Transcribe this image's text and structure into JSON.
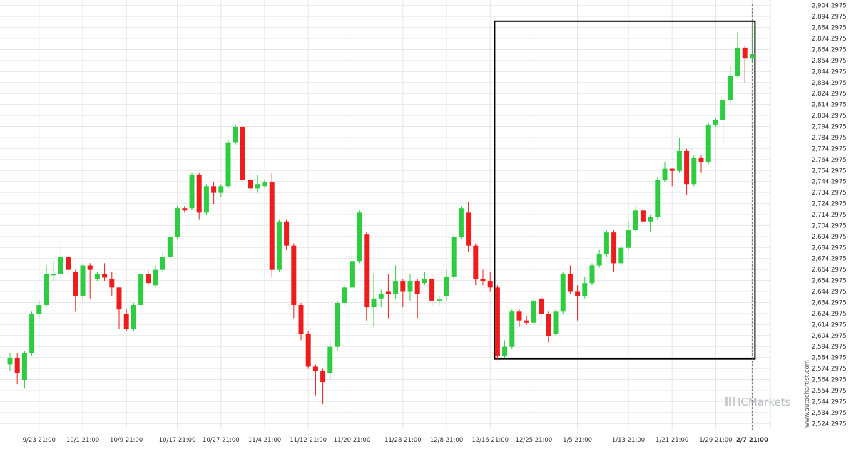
{
  "chart_data": {
    "type": "candlestick",
    "title": "",
    "xlabel": "",
    "ylabel": "",
    "ylim": [
      2519.2975,
      2909.2975
    ],
    "grid": true,
    "colors": {
      "up": "#2ecc40",
      "down": "#ee1c1c",
      "grid": "#e6e6e6",
      "highlight_box": "#000000"
    },
    "x_ticks": [
      "9/23 21:00",
      "10/1 21:00",
      "10/9 21:00",
      "10/17 21:00",
      "10/27 21:00",
      "11/4 21:00",
      "11/12 21:00",
      "11/20 21:00",
      "11/28 21:00",
      "12/8 21:00",
      "12/16 21:00",
      "12/25 21:00",
      "1/5 21:00",
      "1/13 21:00",
      "1/21 21:00",
      "1/29 21:00",
      "2/7 21:00"
    ],
    "y_ticks": [
      "2,524.2975",
      "2,534.2975",
      "2,544.2975",
      "2,554.2975",
      "2,564.2975",
      "2,574.2975",
      "2,584.2975",
      "2,594.2975",
      "2,604.2975",
      "2,614.2975",
      "2,624.2975",
      "2,634.2975",
      "2,644.2975",
      "2,654.2975",
      "2,664.2975",
      "2,674.2975",
      "2,684.2975",
      "2,694.2975",
      "2,704.2975",
      "2,714.2975",
      "2,724.2975",
      "2,734.2975",
      "2,744.2975",
      "2,754.2975",
      "2,764.2975",
      "2,774.2975",
      "2,784.2975",
      "2,794.2975",
      "2,804.2975",
      "2,814.2975",
      "2,824.2975",
      "2,834.2975",
      "2,844.2975",
      "2,854.2975",
      "2,864.2975",
      "2,874.2975",
      "2,884.2975",
      "2,894.2975",
      "2,904.2975"
    ],
    "y_tick_values": [
      2524.2975,
      2534.2975,
      2544.2975,
      2554.2975,
      2564.2975,
      2574.2975,
      2584.2975,
      2594.2975,
      2604.2975,
      2614.2975,
      2624.2975,
      2634.2975,
      2644.2975,
      2654.2975,
      2664.2975,
      2674.2975,
      2684.2975,
      2694.2975,
      2704.2975,
      2714.2975,
      2724.2975,
      2734.2975,
      2744.2975,
      2754.2975,
      2764.2975,
      2774.2975,
      2784.2975,
      2794.2975,
      2804.2975,
      2814.2975,
      2824.2975,
      2834.2975,
      2844.2975,
      2854.2975,
      2864.2975,
      2874.2975,
      2884.2975,
      2894.2975,
      2904.2975
    ],
    "highlight_box": {
      "x_start_index": 67,
      "x_end_index": 102,
      "y_low": 2583.0,
      "y_high": 2890.0
    },
    "candles": [
      [
        2578,
        2584,
        2572,
        2588
      ],
      [
        2584,
        2570,
        2560,
        2588
      ],
      [
        2564,
        2588,
        2556,
        2590
      ],
      [
        2588,
        2624,
        2586,
        2626
      ],
      [
        2624,
        2632,
        2620,
        2636
      ],
      [
        2632,
        2660,
        2630,
        2668
      ],
      [
        2660,
        2660,
        2654,
        2672
      ],
      [
        2660,
        2676,
        2656,
        2690
      ],
      [
        2676,
        2664,
        2660,
        2676
      ],
      [
        2662,
        2640,
        2626,
        2664
      ],
      [
        2640,
        2668,
        2638,
        2670
      ],
      [
        2668,
        2664,
        2638,
        2670
      ],
      [
        2656,
        2660,
        2654,
        2662
      ],
      [
        2660,
        2657,
        2654,
        2670
      ],
      [
        2656,
        2648,
        2640,
        2662
      ],
      [
        2648,
        2628,
        2610,
        2648
      ],
      [
        2624,
        2610,
        2608,
        2628
      ],
      [
        2610,
        2632,
        2608,
        2634
      ],
      [
        2632,
        2660,
        2630,
        2662
      ],
      [
        2660,
        2652,
        2650,
        2664
      ],
      [
        2650,
        2664,
        2648,
        2668
      ],
      [
        2664,
        2676,
        2662,
        2680
      ],
      [
        2676,
        2694,
        2674,
        2698
      ],
      [
        2694,
        2720,
        2692,
        2722
      ],
      [
        2720,
        2718,
        2716,
        2722
      ],
      [
        2720,
        2750,
        2718,
        2752
      ],
      [
        2750,
        2716,
        2710,
        2752
      ],
      [
        2716,
        2740,
        2714,
        2742
      ],
      [
        2740,
        2734,
        2724,
        2744
      ],
      [
        2734,
        2740,
        2730,
        2742
      ],
      [
        2740,
        2780,
        2738,
        2782
      ],
      [
        2780,
        2794,
        2778,
        2796
      ],
      [
        2794,
        2746,
        2740,
        2796
      ],
      [
        2746,
        2738,
        2734,
        2752
      ],
      [
        2738,
        2742,
        2734,
        2750
      ],
      [
        2740,
        2744,
        2738,
        2746
      ],
      [
        2744,
        2664,
        2658,
        2752
      ],
      [
        2664,
        2708,
        2662,
        2710
      ],
      [
        2708,
        2686,
        2682,
        2710
      ],
      [
        2686,
        2632,
        2620,
        2688
      ],
      [
        2632,
        2606,
        2600,
        2634
      ],
      [
        2606,
        2576,
        2574,
        2608
      ],
      [
        2576,
        2572,
        2550,
        2578
      ],
      [
        2572,
        2562,
        2542,
        2574
      ],
      [
        2570,
        2594,
        2564,
        2598
      ],
      [
        2594,
        2634,
        2590,
        2636
      ],
      [
        2634,
        2648,
        2632,
        2650
      ],
      [
        2648,
        2672,
        2646,
        2678
      ],
      [
        2672,
        2716,
        2670,
        2718
      ],
      [
        2696,
        2630,
        2618,
        2698
      ],
      [
        2630,
        2638,
        2612,
        2660
      ],
      [
        2638,
        2642,
        2630,
        2646
      ],
      [
        2644,
        2642,
        2620,
        2660
      ],
      [
        2642,
        2654,
        2638,
        2668
      ],
      [
        2654,
        2644,
        2630,
        2656
      ],
      [
        2644,
        2654,
        2636,
        2660
      ],
      [
        2654,
        2642,
        2620,
        2656
      ],
      [
        2652,
        2656,
        2650,
        2662
      ],
      [
        2656,
        2636,
        2630,
        2660
      ],
      [
        2636,
        2637,
        2632,
        2640
      ],
      [
        2640,
        2658,
        2636,
        2664
      ],
      [
        2658,
        2694,
        2656,
        2696
      ],
      [
        2694,
        2720,
        2692,
        2722
      ],
      [
        2716,
        2686,
        2680,
        2726
      ],
      [
        2686,
        2656,
        2650,
        2688
      ],
      [
        2656,
        2654,
        2650,
        2664
      ],
      [
        2654,
        2648,
        2644,
        2662
      ],
      [
        2648,
        2586,
        2582,
        2650
      ],
      [
        2586,
        2594,
        2584,
        2600
      ],
      [
        2594,
        2626,
        2592,
        2628
      ],
      [
        2626,
        2618,
        2612,
        2628
      ],
      [
        2618,
        2616,
        2614,
        2622
      ],
      [
        2616,
        2636,
        2614,
        2638
      ],
      [
        2638,
        2624,
        2614,
        2640
      ],
      [
        2624,
        2604,
        2598,
        2626
      ],
      [
        2606,
        2626,
        2604,
        2628
      ],
      [
        2626,
        2660,
        2624,
        2662
      ],
      [
        2660,
        2644,
        2642,
        2668
      ],
      [
        2644,
        2640,
        2618,
        2650
      ],
      [
        2640,
        2652,
        2638,
        2658
      ],
      [
        2652,
        2668,
        2650,
        2670
      ],
      [
        2668,
        2678,
        2666,
        2682
      ],
      [
        2678,
        2698,
        2676,
        2700
      ],
      [
        2698,
        2670,
        2662,
        2700
      ],
      [
        2670,
        2684,
        2668,
        2686
      ],
      [
        2684,
        2700,
        2682,
        2708
      ],
      [
        2700,
        2718,
        2698,
        2722
      ],
      [
        2718,
        2708,
        2704,
        2720
      ],
      [
        2708,
        2712,
        2698,
        2714
      ],
      [
        2712,
        2746,
        2710,
        2748
      ],
      [
        2746,
        2756,
        2744,
        2762
      ],
      [
        2756,
        2754,
        2740,
        2756
      ],
      [
        2754,
        2772,
        2752,
        2784
      ],
      [
        2772,
        2742,
        2732,
        2774
      ],
      [
        2742,
        2766,
        2740,
        2768
      ],
      [
        2766,
        2762,
        2752,
        2768
      ],
      [
        2762,
        2796,
        2760,
        2798
      ],
      [
        2796,
        2800,
        2794,
        2802
      ],
      [
        2800,
        2818,
        2776,
        2820
      ],
      [
        2818,
        2840,
        2816,
        2850
      ],
      [
        2840,
        2866,
        2838,
        2880
      ],
      [
        2866,
        2856,
        2834,
        2868
      ],
      [
        2856,
        2860,
        2852,
        2888
      ]
    ],
    "watermark": "ICMarkets",
    "source_note": "www.autochartist.com"
  }
}
